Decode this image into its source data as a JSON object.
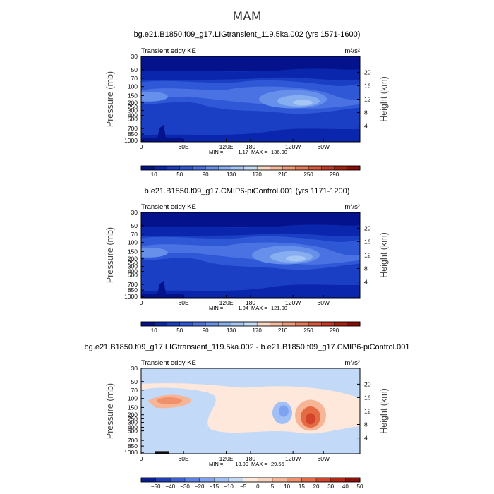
{
  "suptitle": "MAM",
  "colors": {
    "abs_palette": [
      "#04138c",
      "#0a26ad",
      "#1a3ec4",
      "#2e58d6",
      "#4a72e3",
      "#6690ea",
      "#87aef0",
      "#a6c6f4",
      "#c4dcf8",
      "#fbd7c2",
      "#f7b99c",
      "#f19a77",
      "#e77a57",
      "#d9573b",
      "#c63a24",
      "#a8200f",
      "#8b0d06"
    ],
    "diff_palette": [
      "#0a1f8f",
      "#1d3fb8",
      "#3a61d6",
      "#5c82e6",
      "#7ea2ef",
      "#a1c0f5",
      "#c3d9f8",
      "#fde8db",
      "#fbd4bf",
      "#f7b596",
      "#f0916b",
      "#e56b44",
      "#d3452a",
      "#b62814",
      "#8e1006"
    ]
  },
  "chart_data": [
    {
      "type": "heatmap",
      "title": "bg.e21.B1850.f09_g17.LIGtransient_119.5ka.002 (yrs 1571-1600)",
      "left_label": "Transient eddy KE",
      "units": "m²/s²",
      "ylabel": "Pressure (mb)",
      "y2label": "Height (km)",
      "xticks": [
        "0",
        "60E",
        "120E",
        "180",
        "120W",
        "60W"
      ],
      "yticks": [
        "30",
        "50",
        "70",
        "100",
        "150",
        "200",
        "250",
        "300",
        "400",
        "500",
        "700",
        "850",
        "1000"
      ],
      "y2ticks": [
        "20",
        "16",
        "12",
        "8",
        "4"
      ],
      "min_label": "MIN =",
      "min": "1.17",
      "max_label": "MAX =",
      "max": "136.90",
      "colorbar_labels": [
        "10",
        "50",
        "90",
        "130",
        "170",
        "210",
        "250",
        "290"
      ]
    },
    {
      "type": "heatmap",
      "title": "b.e21.B1850.f09_g17.CMIP6-piControl.001 (yrs 1171-1200)",
      "left_label": "Transient eddy KE",
      "units": "m²/s²",
      "ylabel": "Pressure (mb)",
      "y2label": "Height (km)",
      "xticks": [
        "0",
        "60E",
        "120E",
        "180",
        "120W",
        "60W"
      ],
      "yticks": [
        "30",
        "50",
        "70",
        "100",
        "150",
        "200",
        "250",
        "300",
        "400",
        "500",
        "700",
        "850",
        "1000"
      ],
      "y2ticks": [
        "20",
        "16",
        "12",
        "8",
        "4"
      ],
      "min_label": "MIN =",
      "min": "1.04",
      "max_label": "MAX =",
      "max": "121.00",
      "colorbar_labels": [
        "10",
        "50",
        "90",
        "130",
        "170",
        "210",
        "250",
        "290"
      ]
    },
    {
      "type": "heatmap",
      "title": "bg.e21.B1850.f09_g17.LIGtransient_119.5ka.002 - b.e21.B1850.f09_g17.CMIP6-piControl.001",
      "left_label": "Transient eddy KE",
      "units": "m²/s²",
      "ylabel": "Pressure (mb)",
      "y2label": "Height (km)",
      "xticks": [
        "0",
        "60E",
        "120E",
        "180",
        "120W",
        "60W"
      ],
      "yticks": [
        "30",
        "50",
        "70",
        "100",
        "150",
        "200",
        "250",
        "300",
        "400",
        "500",
        "700",
        "850",
        "1000"
      ],
      "y2ticks": [
        "20",
        "16",
        "12",
        "8",
        "4"
      ],
      "min_label": "MIN =",
      "min": "−13.99",
      "max_label": "MAX =",
      "max": "29.55",
      "colorbar_labels": [
        "−50",
        "−40",
        "−30",
        "−20",
        "−15",
        "−10",
        "−5",
        "0",
        "5",
        "10",
        "15",
        "20",
        "30",
        "40",
        "50"
      ]
    }
  ]
}
